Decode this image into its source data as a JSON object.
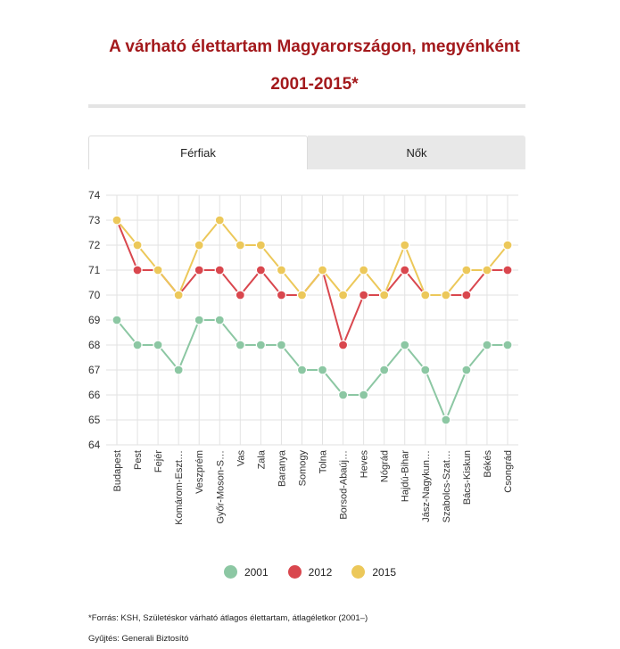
{
  "header": {
    "title_line1": "A várható élettartam Magyarországon, megyénként",
    "title_line2": "2001-2015*"
  },
  "tabs": [
    {
      "label": "Férfiak",
      "active": true
    },
    {
      "label": "Nők",
      "active": false
    }
  ],
  "colors": {
    "2001": "#8cc7a3",
    "2012": "#d9474e",
    "2015": "#ecc85a",
    "grid": "#e2e2e2",
    "title": "#a3191c"
  },
  "chart_data": {
    "type": "line",
    "categories": [
      "Budapest",
      "Pest",
      "Fejér",
      "Komárom-Eszt…",
      "Veszprém",
      "Győr-Moson-S…",
      "Vas",
      "Zala",
      "Baranya",
      "Somogy",
      "Tolna",
      "Borsod-Abaúj…",
      "Heves",
      "Nógrád",
      "Hajdú-Bihar",
      "Jász-Nagykun…",
      "Szabolcs-Szat…",
      "Bács-Kiskun",
      "Békés",
      "Csongrád"
    ],
    "series": [
      {
        "name": "2001",
        "values": [
          69,
          68,
          68,
          67,
          69,
          69,
          68,
          68,
          68,
          67,
          67,
          66,
          66,
          67,
          68,
          67,
          65,
          67,
          68,
          68
        ]
      },
      {
        "name": "2012",
        "values": [
          73,
          71,
          71,
          70,
          71,
          71,
          70,
          71,
          70,
          70,
          71,
          68,
          70,
          70,
          71,
          70,
          70,
          70,
          71,
          71
        ]
      },
      {
        "name": "2015",
        "values": [
          73,
          72,
          71,
          70,
          72,
          73,
          72,
          72,
          71,
          70,
          71,
          70,
          71,
          70,
          72,
          70,
          70,
          71,
          71,
          72
        ]
      }
    ],
    "ylim": [
      64,
      74
    ],
    "yticks": [
      64,
      65,
      66,
      67,
      68,
      69,
      70,
      71,
      72,
      73,
      74
    ],
    "grid": true,
    "legend_position": "bottom-center"
  },
  "legend": [
    {
      "label": "2001"
    },
    {
      "label": "2012"
    },
    {
      "label": "2015"
    }
  ],
  "footer": {
    "source": "*Forrás: KSH, Születéskor várható átlagos élettartam, átlagéletkor (2001–)",
    "collected": "Gyűjtés: Generali Biztosító"
  }
}
